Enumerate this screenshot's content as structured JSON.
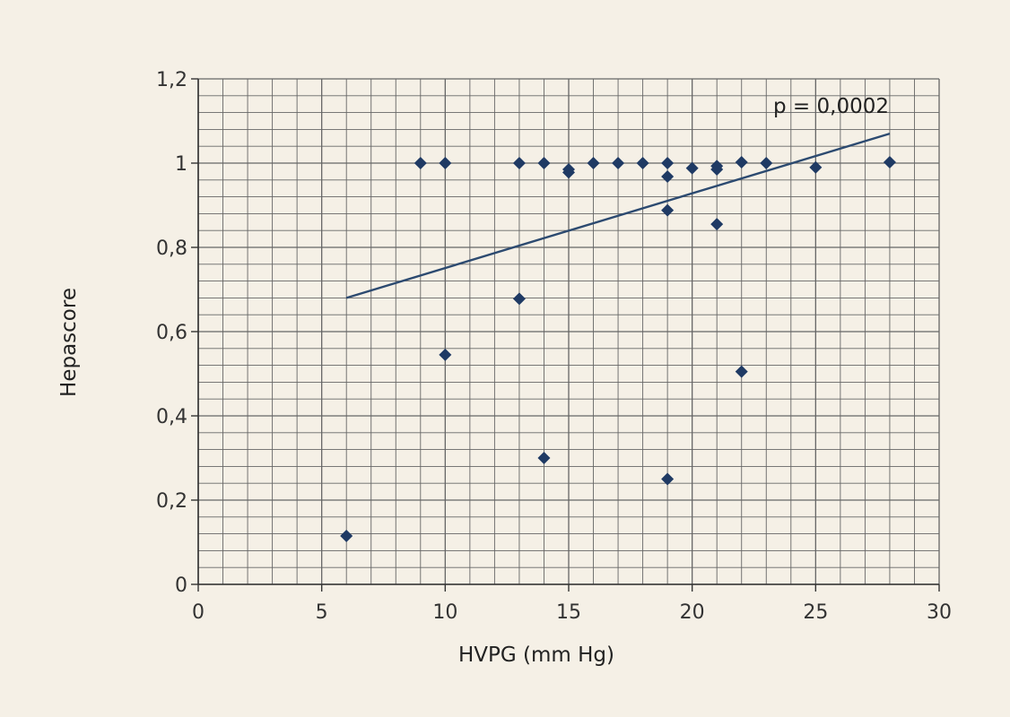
{
  "chart_data": {
    "type": "scatter",
    "title": "",
    "xlabel": "HVPG (mm Hg)",
    "ylabel": "Hepascore",
    "xlim": [
      0,
      30
    ],
    "ylim": [
      0,
      1.2
    ],
    "x_ticks": [
      0,
      5,
      10,
      15,
      20,
      25,
      30
    ],
    "x_tick_labels": [
      "0",
      "5",
      "10",
      "15",
      "20",
      "25",
      "30"
    ],
    "y_ticks": [
      0,
      0.2,
      0.4,
      0.6,
      0.8,
      1.0,
      1.2
    ],
    "y_tick_labels": [
      "0",
      "0,2",
      "0,4",
      "0,6",
      "0,8",
      "1",
      "1,2"
    ],
    "grid": true,
    "colors": {
      "marker": "#1f3a64",
      "trendline": "#2c4a70",
      "grid": "#666666",
      "background": "#f5f0e6"
    },
    "annotation": "p = 0,0002",
    "series": [
      {
        "points": [
          [
            6,
            0.115
          ],
          [
            9,
            1.0
          ],
          [
            10,
            1.0
          ],
          [
            10,
            0.545
          ],
          [
            13,
            1.0
          ],
          [
            13,
            0.678
          ],
          [
            14,
            1.0
          ],
          [
            14,
            0.3
          ],
          [
            15,
            0.985
          ],
          [
            15,
            0.978
          ],
          [
            16,
            1.0
          ],
          [
            17,
            1.0
          ],
          [
            18,
            1.0
          ],
          [
            19,
            1.0
          ],
          [
            19,
            0.968
          ],
          [
            19,
            0.888
          ],
          [
            19,
            0.25
          ],
          [
            20,
            0.988
          ],
          [
            21,
            0.993
          ],
          [
            21,
            0.985
          ],
          [
            21,
            0.855
          ],
          [
            22,
            1.002
          ],
          [
            22,
            0.505
          ],
          [
            23,
            1.0
          ],
          [
            25,
            0.99
          ],
          [
            28,
            1.002
          ]
        ]
      }
    ],
    "trendline": {
      "x": [
        6,
        28
      ],
      "y": [
        0.68,
        1.07
      ]
    }
  }
}
